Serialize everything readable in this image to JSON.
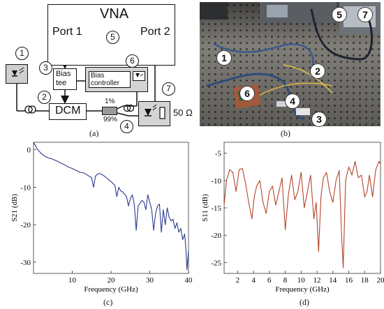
{
  "diagram": {
    "vna_label": "VNA",
    "port1_label": "Port 1",
    "port2_label": "Port 2",
    "bias_tee_label": "Bias tee",
    "bias_controller_label": "Bias controller",
    "dcm_label": "DCM",
    "ratio_top": "1%",
    "ratio_bottom": "99%",
    "load_label": "50 Ω",
    "markers": [
      "1",
      "2",
      "3",
      "4",
      "5",
      "6",
      "7"
    ]
  },
  "photo": {
    "markers": [
      "1",
      "2",
      "3",
      "4",
      "5",
      "6",
      "7"
    ]
  },
  "captions": {
    "a": "(a)",
    "b": "(b)",
    "c": "(c)",
    "d": "(d)"
  },
  "chart_data": [
    {
      "type": "line",
      "panel": "c",
      "xlabel": "Frequency (GHz)",
      "ylabel": "S21 (dB)",
      "xlim": [
        0,
        40
      ],
      "ylim": [
        -33,
        2
      ],
      "xticks": [
        10,
        20,
        30,
        40
      ],
      "yticks": [
        0,
        -10,
        -20,
        -30
      ],
      "color": "#2b3a8f",
      "series": [
        {
          "x": [
            0,
            1,
            2,
            3,
            4,
            5,
            6,
            7,
            8,
            9,
            10,
            11,
            12,
            13,
            14,
            15,
            15.5,
            16,
            16.5,
            17,
            18,
            19,
            20,
            21,
            21.5,
            22,
            22.5,
            23,
            24,
            24.5,
            25,
            25.5,
            26,
            26.5,
            27,
            28,
            28.5,
            29,
            29.5,
            30,
            30.5,
            31,
            31.5,
            32,
            32.5,
            33,
            33.5,
            34,
            34.5,
            35,
            35.5,
            36,
            36.5,
            37,
            37.5,
            38,
            38.5,
            39,
            39.3,
            39.6,
            40
          ],
          "y": [
            2,
            0.2,
            -1,
            -1.8,
            -2.2,
            -2.5,
            -3,
            -3.5,
            -4,
            -4.6,
            -5,
            -5.5,
            -6,
            -6.2,
            -6.8,
            -7.5,
            -10,
            -7,
            -6.5,
            -6.3,
            -6.8,
            -7.6,
            -8.5,
            -9.5,
            -12.5,
            -10,
            -11,
            -11.2,
            -12.5,
            -15,
            -13,
            -12,
            -14.5,
            -21.5,
            -15,
            -13.5,
            -14,
            -16,
            -12,
            -14,
            -16,
            -21.5,
            -17,
            -15,
            -14.5,
            -22,
            -16,
            -20,
            -15.5,
            -18,
            -19,
            -18.5,
            -21,
            -19.5,
            -22,
            -21,
            -24,
            -22.5,
            -26,
            -32,
            -27
          ]
        }
      ]
    },
    {
      "type": "line",
      "panel": "d",
      "xlabel": "Frequency (GHz)",
      "ylabel": "S11 (dB)",
      "xlim": [
        0.3,
        20
      ],
      "ylim": [
        -27,
        -3
      ],
      "xticks": [
        2,
        4,
        6,
        8,
        10,
        12,
        14,
        16,
        18,
        20
      ],
      "yticks": [
        -5,
        -10,
        -15,
        -20,
        -25
      ],
      "color": "#b5452b",
      "series": [
        {
          "x": [
            0.3,
            0.6,
            1,
            1.4,
            1.8,
            2.2,
            2.6,
            3,
            3.4,
            3.8,
            4.1,
            4.4,
            4.8,
            5.2,
            5.6,
            6,
            6.4,
            6.8,
            7.2,
            7.6,
            8,
            8.4,
            8.8,
            9.2,
            9.6,
            10,
            10.4,
            10.8,
            11.2,
            11.6,
            11.9,
            12.2,
            12.5,
            12.8,
            13.2,
            13.6,
            14,
            14.4,
            14.8,
            15.1,
            15.3,
            15.6,
            16,
            16.4,
            16.8,
            17.2,
            17.6,
            18,
            18.3,
            18.6,
            19,
            19.4,
            19.8,
            20
          ],
          "y": [
            -14.5,
            -10,
            -8,
            -8.5,
            -12,
            -8,
            -7.8,
            -10.5,
            -14,
            -17,
            -13,
            -11,
            -10,
            -14,
            -16,
            -12,
            -11,
            -14.5,
            -12,
            -9.5,
            -19,
            -12.5,
            -9,
            -13.5,
            -12,
            -8.5,
            -15,
            -12,
            -9,
            -17,
            -14,
            -23,
            -13,
            -9.5,
            -8.5,
            -12,
            -14,
            -10,
            -8.2,
            -20,
            -26,
            -10,
            -7.5,
            -9,
            -6.5,
            -9.5,
            -9,
            -13,
            -12,
            -9,
            -13,
            -8,
            -6.5,
            -7
          ]
        }
      ]
    }
  ]
}
